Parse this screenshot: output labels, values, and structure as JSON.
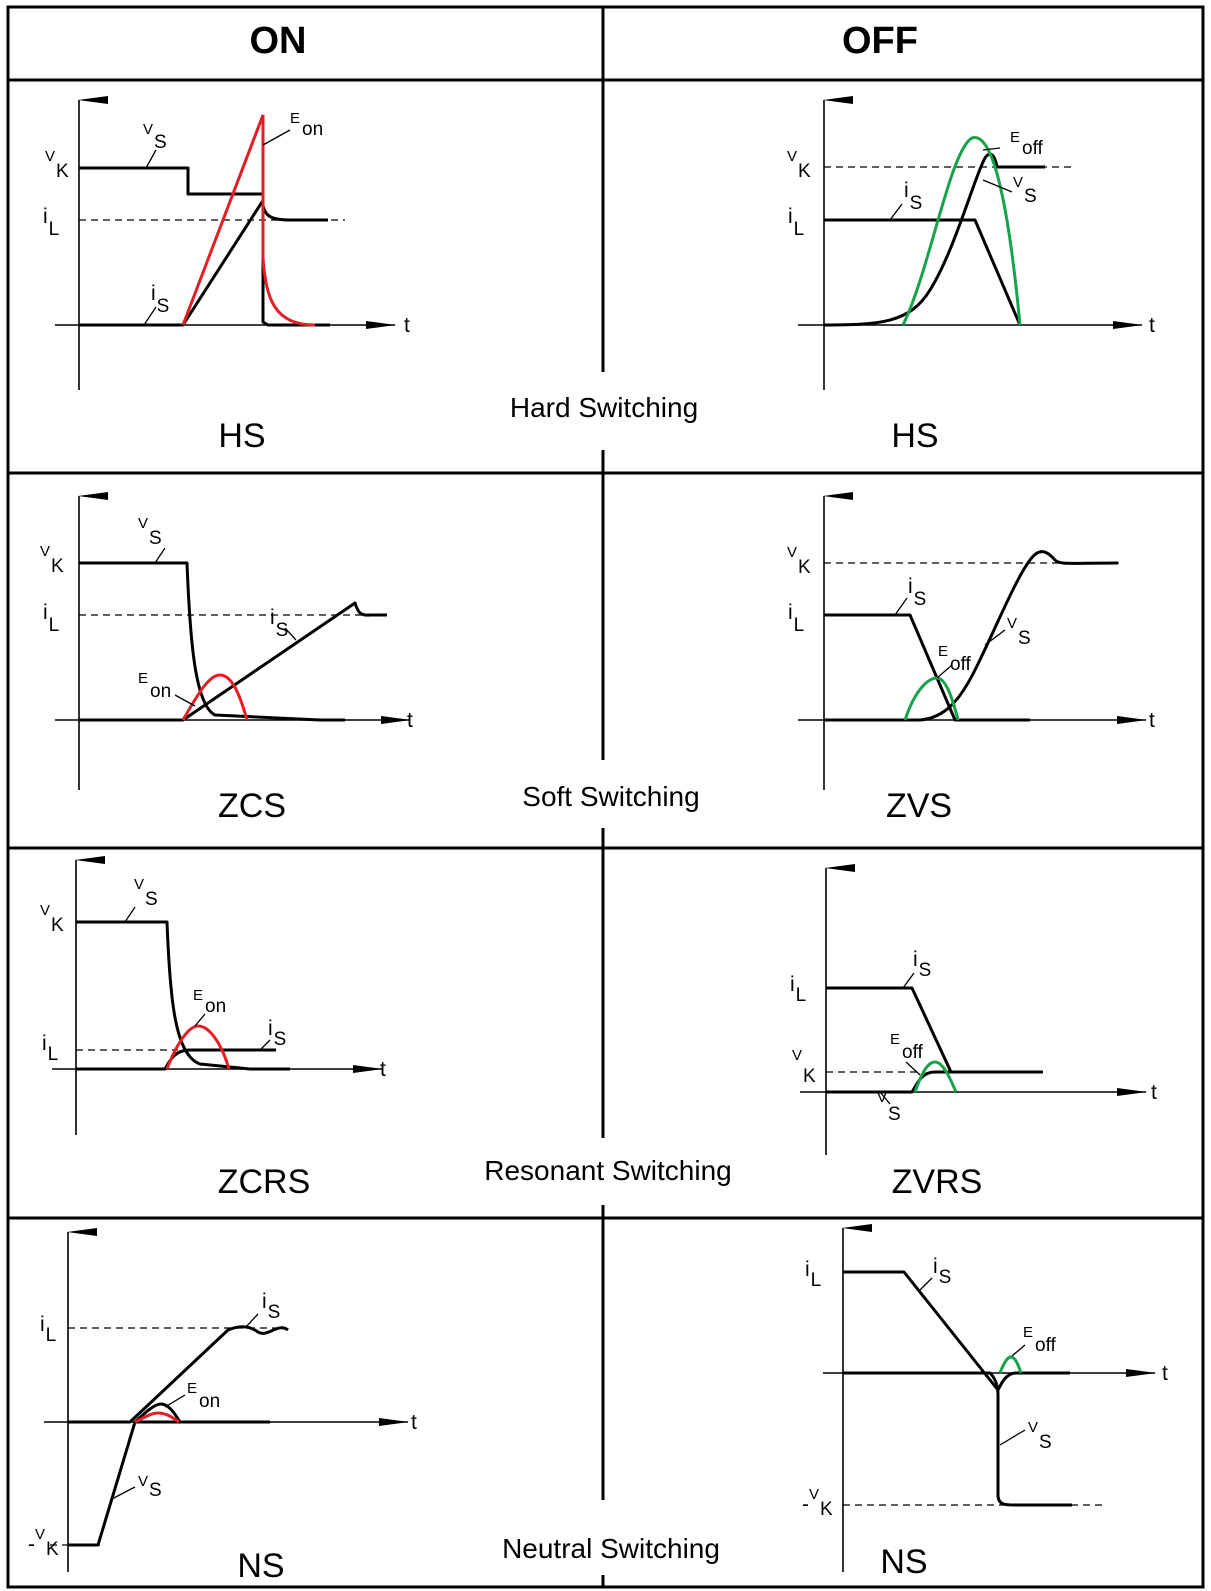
{
  "header": {
    "on": "ON",
    "off": "OFF"
  },
  "rows": [
    {
      "category": "Hard Switching",
      "on_mode": "HS",
      "off_mode": "HS"
    },
    {
      "category": "Soft Switching",
      "on_mode": "ZCS",
      "off_mode": "ZVS"
    },
    {
      "category": "Resonant Switching",
      "on_mode": "ZCRS",
      "off_mode": "ZVRS"
    },
    {
      "category": "Neutral Switching",
      "on_mode": "NS",
      "off_mode": "NS"
    }
  ],
  "symbols": {
    "v": "V",
    "i": "i",
    "sub_s": "S",
    "sub_k": "K",
    "sub_l": "L",
    "e": "E",
    "sub_on": "on",
    "sub_off": "off",
    "t": "t",
    "neg": "-"
  },
  "colors": {
    "e_on": "#e31e24",
    "e_off": "#16a34a",
    "wave": "#000000"
  }
}
